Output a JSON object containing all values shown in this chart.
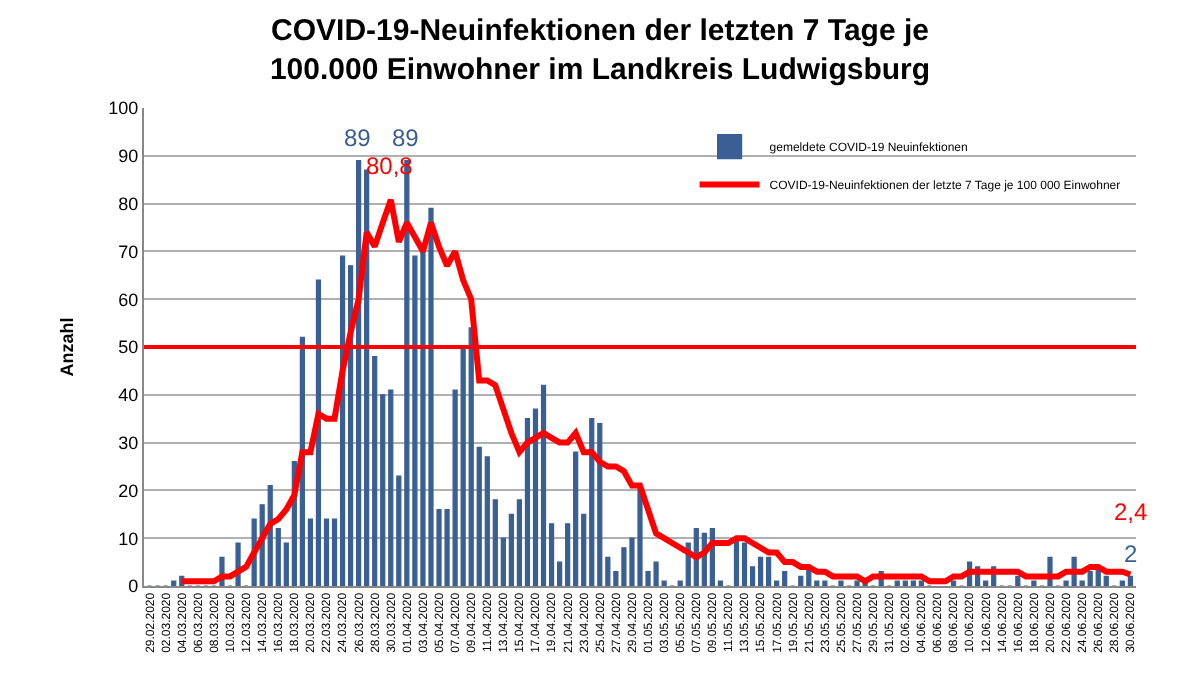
{
  "chart_data": {
    "type": "bar",
    "title": "COVID-19-Neuinfektionen der letzten 7 Tage je\n100.000 Einwohner im Landkreis Ludwigsburg",
    "ylabel": "Anzahl",
    "categories": [
      "29.02.2020",
      null,
      "02.03.2020",
      null,
      "04.03.2020",
      null,
      "06.03.2020",
      null,
      "08.03.2020",
      null,
      "10.03.2020",
      null,
      "12.03.2020",
      null,
      "14.03.2020",
      null,
      "16.03.2020",
      null,
      "18.03.2020",
      null,
      "20.03.2020",
      null,
      "22.03.2020",
      null,
      "24.03.2020",
      null,
      "26.03.2020",
      null,
      "28.03.2020",
      null,
      "30.03.2020",
      null,
      "01.04.2020",
      null,
      "03.04.2020",
      null,
      "05.04.2020",
      null,
      "07.04.2020",
      null,
      "09.04.2020",
      null,
      "11.04.2020",
      null,
      "13.04.2020",
      null,
      "15.04.2020",
      null,
      "17.04.2020",
      null,
      "19.04.2020",
      null,
      "21.04.2020",
      null,
      "23.04.2020",
      null,
      "25.04.2020",
      null,
      "27.04.2020",
      null,
      "29.04.2020",
      null,
      "01.05.2020",
      null,
      "03.05.2020",
      null,
      "05.05.2020",
      null,
      "07.05.2020",
      null,
      "09.05.2020",
      null,
      "11.05.2020",
      null,
      "13.05.2020",
      null,
      "15.05.2020",
      null,
      "17.05.2020",
      null,
      "19.05.2020",
      null,
      "21.05.2020",
      null,
      "23.05.2020",
      null,
      "25.05.2020",
      null,
      "27.05.2020",
      null,
      "29.05.2020",
      null,
      "31.05.2020",
      null,
      "02.06.2020",
      null,
      "04.06.2020",
      null,
      "06.06.2020",
      null,
      "08.06.2020",
      null,
      "10.06.2020",
      null,
      "12.06.2020",
      null,
      "14.06.2020",
      null,
      "16.06.2020",
      null,
      "18.06.2020",
      null,
      "20.06.2020",
      null,
      "22.06.2020",
      null,
      "24.06.2020",
      null,
      "26.06.2020",
      null,
      "28.06.2020",
      null,
      "30.06.2020"
    ],
    "series": [
      {
        "name": "gemeldete COVID-19 Neuinfektionen",
        "color": "#3a5f94",
        "values": [
          0,
          0,
          0,
          1,
          2,
          0,
          0,
          0,
          0,
          6,
          0,
          9,
          0,
          14,
          17,
          21,
          12,
          9,
          26,
          52,
          14,
          64,
          14,
          14,
          69,
          67,
          89,
          87,
          48,
          40,
          41,
          23,
          89,
          69,
          70,
          79,
          16,
          16,
          41,
          50,
          54,
          29,
          27,
          18,
          10,
          15,
          18,
          35,
          37,
          42,
          13,
          5,
          13,
          28,
          15,
          35,
          34,
          6,
          3,
          8,
          10,
          21,
          3,
          5,
          1,
          0,
          1,
          9,
          12,
          11,
          12,
          1,
          0,
          10,
          9,
          4,
          6,
          6,
          1,
          3,
          0,
          2,
          4,
          1,
          1,
          0,
          1,
          0,
          1,
          1,
          0,
          3,
          0,
          1,
          1,
          1,
          1,
          0,
          null,
          null,
          1,
          0,
          5,
          4,
          1,
          4,
          0,
          0,
          2,
          0,
          1,
          0,
          6,
          0,
          1,
          6,
          1,
          3,
          4,
          2,
          0,
          1,
          2
        ],
        "value_labels": [
          null,
          null,
          null,
          null,
          null,
          null,
          null,
          null,
          null,
          null,
          null,
          null,
          null,
          null,
          null,
          null,
          null,
          null,
          null,
          null,
          null,
          null,
          null,
          null,
          null,
          null,
          "89",
          null,
          null,
          null,
          null,
          null,
          "89",
          null,
          null,
          null,
          null,
          null,
          null,
          null,
          null,
          null,
          null,
          null,
          null,
          null,
          null,
          null,
          null,
          null,
          null,
          null,
          null,
          null,
          null,
          null,
          null,
          null,
          null,
          null,
          null,
          null,
          null,
          null,
          null,
          null,
          null,
          null,
          null,
          null,
          null,
          null,
          null,
          null,
          null,
          null,
          null,
          null,
          null,
          null,
          null,
          null,
          null,
          null,
          null,
          null,
          null,
          null,
          null,
          null,
          null,
          null,
          null,
          null,
          null,
          null,
          null,
          null,
          null,
          null,
          null,
          null,
          null,
          null,
          null,
          null,
          null,
          null,
          null,
          null,
          null,
          null,
          null,
          null,
          null,
          null,
          null,
          null,
          null,
          null,
          null,
          null,
          "2"
        ]
      },
      {
        "name": "COVID-19-Neuinfektionen der letzte 7 Tage je 100 000 Einwohner",
        "type": "line",
        "color": "#ff0000",
        "values": [
          null,
          null,
          null,
          null,
          1,
          1,
          1,
          1,
          1,
          2,
          2,
          3,
          4,
          7,
          10,
          13,
          14,
          16,
          19,
          28,
          28,
          36,
          35,
          35,
          45,
          53,
          60,
          74,
          71,
          76,
          80.8,
          72,
          76,
          73,
          70,
          76,
          71,
          67,
          70,
          64,
          60,
          43,
          43,
          42,
          37,
          32,
          28,
          30,
          31,
          32,
          31,
          30,
          30,
          32,
          28,
          28,
          26,
          25,
          25,
          24,
          21,
          21,
          16,
          11,
          10,
          9,
          8,
          7,
          6,
          7,
          9,
          9,
          9,
          10,
          10,
          9,
          8,
          7,
          7,
          5,
          5,
          4,
          4,
          3,
          3,
          2,
          2,
          2,
          2,
          1,
          2,
          2,
          2,
          2,
          2,
          2,
          2,
          1,
          1,
          1,
          2,
          2,
          3,
          3,
          3,
          3,
          3,
          3,
          3,
          2,
          2,
          2,
          2,
          2,
          3,
          3,
          3,
          4,
          4,
          3,
          3,
          3,
          2.4
        ],
        "value_labels": [
          null,
          null,
          null,
          null,
          null,
          null,
          null,
          null,
          null,
          null,
          null,
          null,
          null,
          null,
          null,
          null,
          null,
          null,
          null,
          null,
          null,
          null,
          null,
          null,
          null,
          null,
          null,
          null,
          null,
          null,
          "80,8",
          null,
          null,
          null,
          null,
          null,
          null,
          null,
          null,
          null,
          null,
          null,
          null,
          null,
          null,
          null,
          null,
          null,
          null,
          null,
          null,
          null,
          null,
          null,
          null,
          null,
          null,
          null,
          null,
          null,
          null,
          null,
          null,
          null,
          null,
          null,
          null,
          null,
          null,
          null,
          null,
          null,
          null,
          null,
          null,
          null,
          null,
          null,
          null,
          null,
          null,
          null,
          null,
          null,
          null,
          null,
          null,
          null,
          null,
          null,
          null,
          null,
          null,
          null,
          null,
          null,
          null,
          null,
          null,
          null,
          null,
          null,
          null,
          null,
          null,
          null,
          null,
          null,
          null,
          null,
          null,
          null,
          null,
          null,
          null,
          null,
          null,
          null,
          null,
          null,
          null,
          null,
          "2,4"
        ]
      }
    ],
    "ref_lines": [
      {
        "axis": "y",
        "value": 50,
        "color": "#ff0000",
        "line_style": "solid"
      }
    ],
    "ylim": [
      0,
      100
    ],
    "yticks": [
      0,
      10,
      20,
      30,
      40,
      50,
      60,
      70,
      80,
      90,
      100
    ],
    "grid": "y",
    "legend": "top right"
  }
}
